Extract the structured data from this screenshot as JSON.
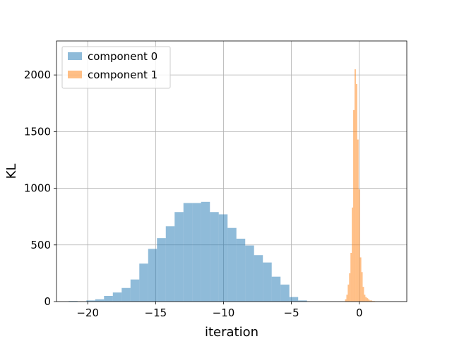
{
  "chart_data": {
    "type": "histogram",
    "title": "",
    "xlabel": "iteration",
    "ylabel": "KL",
    "xlim": [
      -22.3,
      3.5
    ],
    "ylim": [
      0,
      2300
    ],
    "xticks": [
      -20,
      -15,
      -10,
      -5,
      0
    ],
    "xtick_labels": [
      "−20",
      "−15",
      "−10",
      "−5",
      "0"
    ],
    "yticks": [
      0,
      500,
      1000,
      1500,
      2000
    ],
    "ytick_labels": [
      "0",
      "500",
      "1000",
      "1500",
      "2000"
    ],
    "grid": true,
    "legend_position": "upper-left",
    "series": [
      {
        "name": "component 0",
        "color": "#1f77b4",
        "alpha": 0.5,
        "bin_start": -21.4,
        "bin_width": 0.65,
        "counts": [
          5,
          0,
          10,
          20,
          50,
          80,
          120,
          195,
          335,
          465,
          560,
          665,
          790,
          870,
          870,
          880,
          790,
          770,
          650,
          555,
          495,
          410,
          345,
          220,
          150,
          40,
          10
        ]
      },
      {
        "name": "component 1",
        "color": "#ff7f0e",
        "alpha": 0.5,
        "bin_start": -1.05,
        "bin_width": 0.1,
        "counts": [
          20,
          60,
          150,
          250,
          430,
          830,
          1690,
          2050,
          1920,
          1430,
          990,
          390,
          260,
          130,
          60,
          40,
          30,
          20,
          10,
          10,
          5,
          5,
          3
        ]
      }
    ]
  }
}
